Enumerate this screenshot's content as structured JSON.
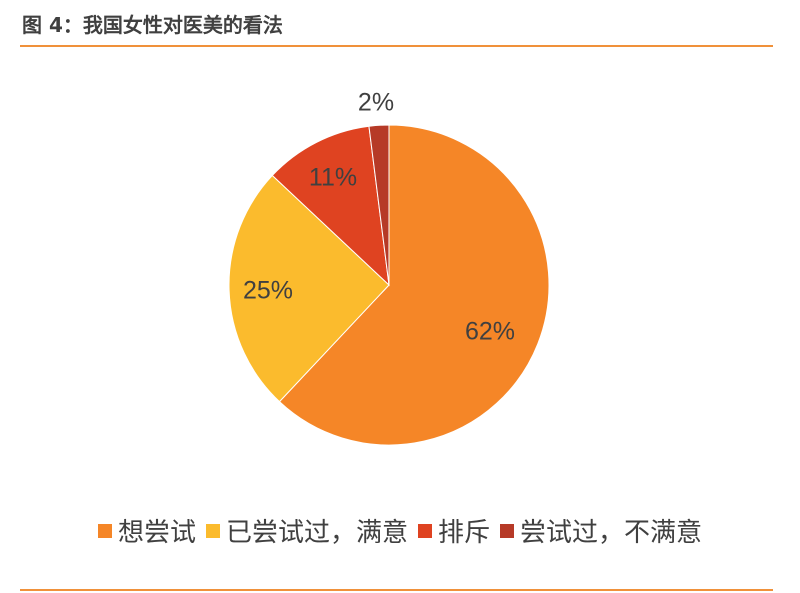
{
  "figure": {
    "title": "图 4：我国女性对医美的看法",
    "accent_color": "#f0913a"
  },
  "chart_data": {
    "type": "pie",
    "title": "",
    "categories": [
      "想尝试",
      "已尝试过，满意",
      "排斥",
      "尝试过，不满意"
    ],
    "values": [
      62,
      25,
      11,
      2
    ],
    "labels": [
      "62%",
      "25%",
      "11%",
      "2%"
    ],
    "colors": [
      "#f58627",
      "#fbbb2d",
      "#df4321",
      "#b63a27"
    ],
    "legend_position": "bottom",
    "start_angle_deg": 0,
    "direction": "clockwise"
  }
}
